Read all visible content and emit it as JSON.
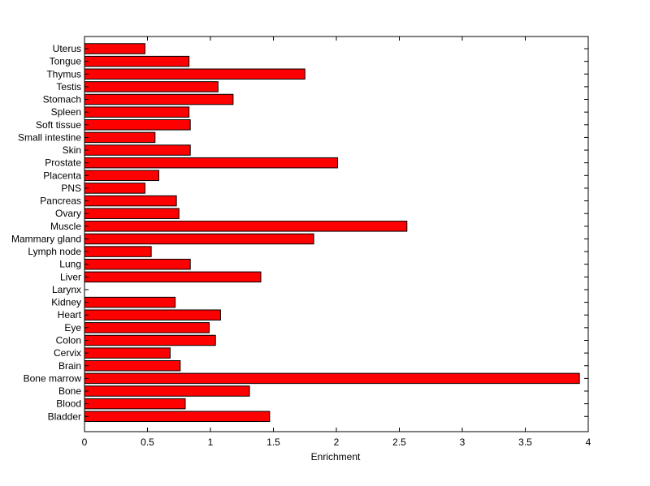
{
  "chart_data": {
    "type": "bar",
    "orientation": "horizontal",
    "title": "",
    "xlabel": "Enrichment",
    "ylabel": "",
    "xlim": [
      0,
      4
    ],
    "xticks": [
      "0",
      "0.5",
      "1",
      "1.5",
      "2",
      "2.5",
      "3",
      "3.5",
      "4"
    ],
    "grid": false,
    "bar_color": "#ff0000",
    "bar_edge_color": "#000000",
    "categories": [
      "Uterus",
      "Tongue",
      "Thymus",
      "Testis",
      "Stomach",
      "Spleen",
      "Soft tissue",
      "Small intestine",
      "Skin",
      "Prostate",
      "Placenta",
      "PNS",
      "Pancreas",
      "Ovary",
      "Muscle",
      "Mammary gland",
      "Lymph node",
      "Lung",
      "Liver",
      "Larynx",
      "Kidney",
      "Heart",
      "Eye",
      "Colon",
      "Cervix",
      "Brain",
      "Bone marrow",
      "Bone",
      "Blood",
      "Bladder"
    ],
    "values": [
      0.48,
      0.83,
      1.75,
      1.06,
      1.18,
      0.83,
      0.84,
      0.56,
      0.84,
      2.01,
      0.59,
      0.48,
      0.73,
      0.75,
      2.56,
      1.82,
      0.53,
      0.84,
      1.4,
      0.0,
      0.72,
      1.08,
      0.99,
      1.04,
      0.68,
      0.76,
      3.93,
      1.31,
      0.8,
      1.47
    ]
  }
}
